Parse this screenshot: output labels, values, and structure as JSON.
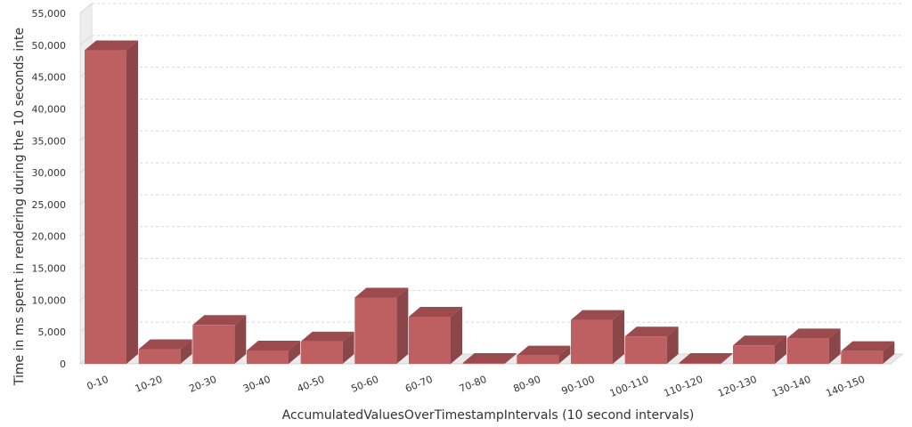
{
  "chart_data": {
    "type": "bar",
    "title": "",
    "xlabel": "AccumulatedValuesOverTimestampIntervals (10 second intervals)",
    "ylabel": "Time in ms spent in rendering during the 10 seconds inte",
    "ylim": [
      0,
      55000
    ],
    "yticks": [
      0,
      5000,
      10000,
      15000,
      20000,
      25000,
      30000,
      35000,
      40000,
      45000,
      50000,
      55000
    ],
    "ytick_labels": [
      "0",
      "5,000",
      "10,000",
      "15,000",
      "20,000",
      "25,000",
      "30,000",
      "35,000",
      "40,000",
      "45,000",
      "50,000",
      "55,000"
    ],
    "categories": [
      "0-10",
      "10-20",
      "20-30",
      "30-40",
      "40-50",
      "50-60",
      "60-70",
      "70-80",
      "80-90",
      "90-100",
      "100-110",
      "110-120",
      "120-130",
      "130-140",
      "140-150"
    ],
    "values": [
      49200,
      2300,
      6100,
      2100,
      3500,
      10400,
      7400,
      0,
      1300,
      6900,
      4300,
      0,
      2900,
      4000,
      2000
    ],
    "grid": true,
    "three_d": true,
    "colors": {
      "bar_front": "#be5f62",
      "bar_top": "#9b4b4e",
      "bar_side": "#8a4649",
      "grid": "#d8d8d8",
      "floor": "#eaeaea",
      "text": "#333333"
    }
  }
}
